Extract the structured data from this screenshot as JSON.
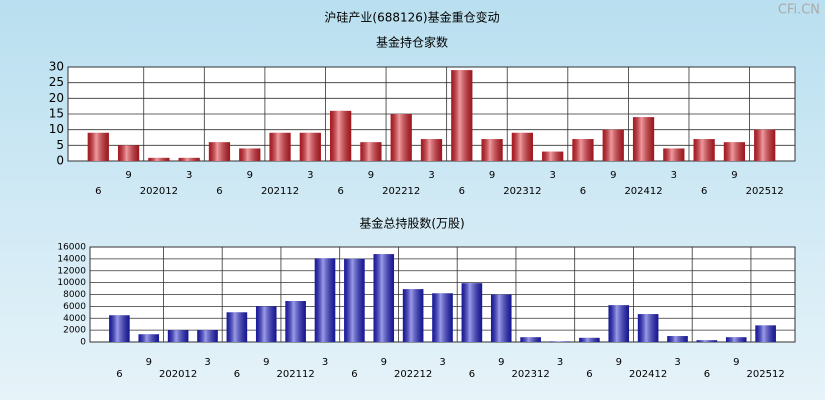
{
  "watermark": "CFi.CN",
  "chart_data": [
    {
      "type": "bar",
      "title": "沪硅产业(688126)基金重仓变动",
      "subtitle": "基金持仓家数",
      "categories": [
        "6",
        "9",
        "202012",
        "3",
        "6",
        "9",
        "202112",
        "3",
        "6",
        "9",
        "202212",
        "3",
        "6",
        "9",
        "202312",
        "3",
        "6",
        "9",
        "202412",
        "3",
        "6",
        "9",
        "202512"
      ],
      "values": [
        9,
        5,
        1,
        1,
        6,
        4,
        9,
        9,
        16,
        6,
        15,
        7,
        29,
        7,
        9,
        3,
        7,
        10,
        14,
        4,
        7,
        6,
        10
      ],
      "color": "#e0202a",
      "ylim": [
        0,
        30
      ],
      "yticks": [
        0,
        5,
        10,
        15,
        20,
        25,
        30
      ],
      "grid": true
    },
    {
      "type": "bar",
      "title": "基金总持股数(万股)",
      "categories": [
        "6",
        "9",
        "202012",
        "3",
        "6",
        "9",
        "202112",
        "3",
        "6",
        "9",
        "202212",
        "3",
        "6",
        "9",
        "202312",
        "3",
        "6",
        "9",
        "202412",
        "3",
        "6",
        "9",
        "202512"
      ],
      "values": [
        4500,
        1300,
        2000,
        2000,
        5000,
        6000,
        6900,
        14100,
        14000,
        14800,
        8900,
        8200,
        9900,
        8000,
        800,
        100,
        700,
        6200,
        4700,
        1000,
        300,
        800,
        2800
      ],
      "color": "#2020d0",
      "ylim": [
        0,
        16000
      ],
      "yticks": [
        0,
        2000,
        4000,
        6000,
        8000,
        10000,
        12000,
        14000,
        16000
      ],
      "grid": true
    }
  ]
}
